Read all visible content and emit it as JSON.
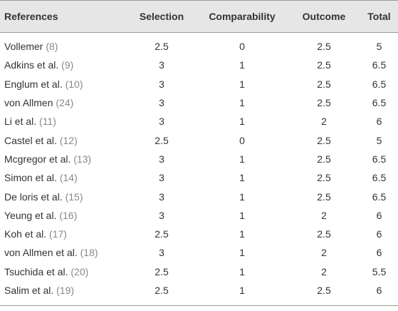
{
  "table": {
    "header": [
      "References",
      "Selection",
      "Comparability",
      "Outcome",
      "Total"
    ],
    "rows": [
      [
        {
          "name": "Vollemer",
          "ref": "(8)"
        },
        2.5,
        0,
        2.5,
        5
      ],
      [
        {
          "name": "Adkins et al.",
          "ref": "(9)"
        },
        3,
        1,
        2.5,
        6.5
      ],
      [
        {
          "name": "Englum et al.",
          "ref": "(10)"
        },
        3,
        1,
        2.5,
        6.5
      ],
      [
        {
          "name": "von Allmen",
          "ref": "(24)"
        },
        3,
        1,
        2.5,
        6.5
      ],
      [
        {
          "name": "Li et al.",
          "ref": "(11)"
        },
        3,
        1,
        2,
        6
      ],
      [
        {
          "name": "Castel et al.",
          "ref": "(12)"
        },
        2.5,
        0,
        2.5,
        5
      ],
      [
        {
          "name": "Mcgregor et al.",
          "ref": "(13)"
        },
        3,
        1,
        2.5,
        6.5
      ],
      [
        {
          "name": "Simon et al.",
          "ref": "(14)"
        },
        3,
        1,
        2.5,
        6.5
      ],
      [
        {
          "name": "De loris et al.",
          "ref": "(15)"
        },
        3,
        1,
        2.5,
        6.5
      ],
      [
        {
          "name": "Yeung et al.",
          "ref": "(16)"
        },
        3,
        1,
        2,
        6
      ],
      [
        {
          "name": "Koh et al.",
          "ref": "(17)"
        },
        2.5,
        1,
        2.5,
        6
      ],
      [
        {
          "name": "von Allmen et al.",
          "ref": "(18)"
        },
        3,
        1,
        2,
        6
      ],
      [
        {
          "name": "Tsuchida et al.",
          "ref": "(20)"
        },
        2.5,
        1,
        2,
        5.5
      ],
      [
        {
          "name": "Salim et al.",
          "ref": "(19)"
        },
        2.5,
        1,
        2.5,
        6
      ]
    ]
  }
}
